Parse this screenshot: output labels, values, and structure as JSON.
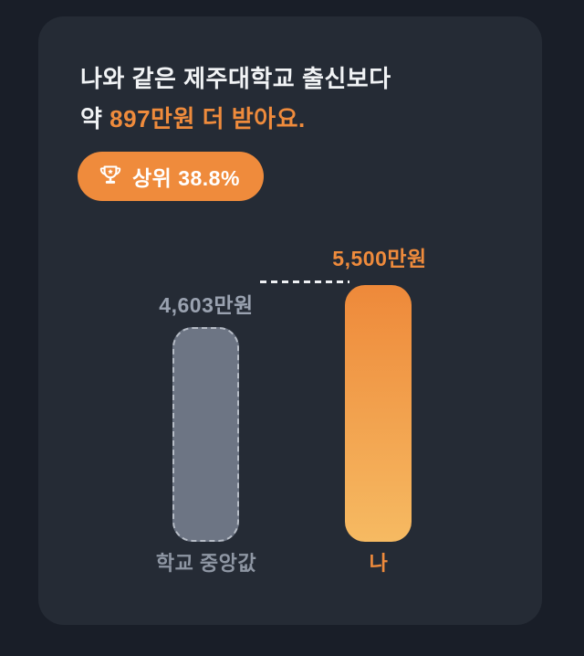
{
  "theme": {
    "page_bg": "#191e28",
    "card_bg": "#252b35",
    "accent_orange": "#ef8b3c",
    "orange_gradient_top": "#ee893a",
    "orange_gradient_bottom": "#f6ba62",
    "gray_bar": "#6d7584",
    "gray_bar_border": "#b6bcc6",
    "dash_color": "#eef0f3",
    "text_primary": "#f1f3f5",
    "text_gray": "#8e96a3",
    "text_gray_light": "#9aa2b0"
  },
  "header": {
    "title_line1": "나와 같은 제주대학교 출신보다",
    "title_line2_prefix": "약 ",
    "title_line2_highlight": "897만원 더 받아요."
  },
  "badge": {
    "icon": "trophy-icon",
    "label": "상위 38.8%"
  },
  "chart_data": {
    "type": "bar",
    "categories": [
      "학교 중앙값",
      "나"
    ],
    "values": [
      4603,
      5500
    ],
    "value_labels": [
      "4,603만원",
      "5,500만원"
    ],
    "unit": "만원",
    "ylim": [
      0,
      5500
    ],
    "grid": false,
    "legend": false,
    "bar_colors": [
      "#6d7584",
      "linear-gradient(#ee893a, #f6ba62)"
    ],
    "reference_line": {
      "at_value": 5500,
      "style": "dashed",
      "color": "#eef0f3"
    }
  }
}
